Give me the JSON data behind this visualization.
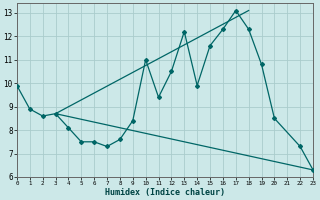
{
  "title": "",
  "xlabel": "Humidex (Indice chaleur)",
  "xlim": [
    0,
    23
  ],
  "ylim": [
    6,
    13.4
  ],
  "yticks": [
    6,
    7,
    8,
    9,
    10,
    11,
    12,
    13
  ],
  "xticks": [
    0,
    1,
    2,
    3,
    4,
    5,
    6,
    7,
    8,
    9,
    10,
    11,
    12,
    13,
    14,
    15,
    16,
    17,
    18,
    19,
    20,
    21,
    22,
    23
  ],
  "bg_color": "#cce8e8",
  "grid_color": "#aacccc",
  "line_color": "#006666",
  "main_line": {
    "x": [
      0,
      1,
      2,
      3,
      4,
      5,
      6,
      7,
      8,
      9,
      10,
      11,
      12,
      13,
      14,
      15,
      16,
      17,
      18,
      19,
      20,
      22,
      23
    ],
    "y": [
      9.9,
      8.9,
      8.6,
      8.7,
      8.1,
      7.5,
      7.5,
      7.3,
      7.6,
      8.4,
      11.0,
      9.4,
      10.5,
      12.2,
      9.9,
      11.6,
      12.3,
      13.1,
      12.3,
      10.8,
      8.5,
      7.3,
      6.3
    ]
  },
  "upper_line": {
    "x": [
      3,
      18
    ],
    "y": [
      8.7,
      13.1
    ]
  },
  "lower_line": {
    "x": [
      3,
      23
    ],
    "y": [
      8.7,
      6.3
    ]
  }
}
